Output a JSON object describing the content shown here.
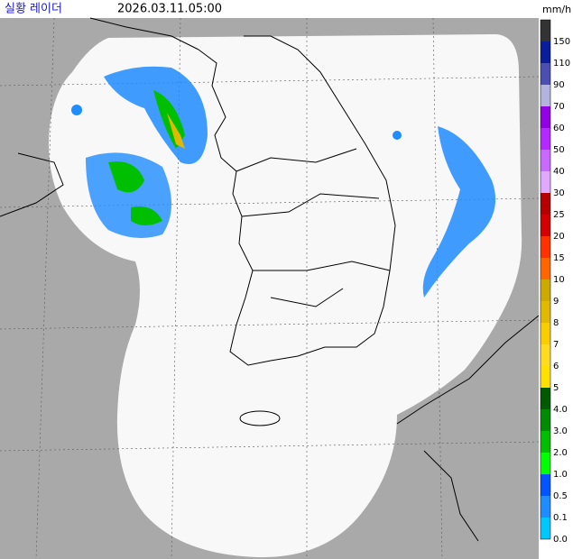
{
  "header": {
    "title": "실황 레이더",
    "time": "2026.03.11.05:00",
    "unit": "mm/h"
  },
  "legend": {
    "top_color": "#333333",
    "items": [
      {
        "label": "150",
        "color": "#000390"
      },
      {
        "label": "110",
        "color": "#0a1e9c"
      },
      {
        "label": "90",
        "color": "#4c4eb1"
      },
      {
        "label": "70",
        "color": "#b3b4de"
      },
      {
        "label": "60",
        "color": "#9300e4"
      },
      {
        "label": "50",
        "color": "#b329ff"
      },
      {
        "label": "40",
        "color": "#c969ff"
      },
      {
        "label": "30",
        "color": "#e0a9ff"
      },
      {
        "label": "25",
        "color": "#b40000"
      },
      {
        "label": "20",
        "color": "#d20000"
      },
      {
        "label": "15",
        "color": "#ff3200"
      },
      {
        "label": "10",
        "color": "#ff6600"
      },
      {
        "label": "9",
        "color": "#ccaa00"
      },
      {
        "label": "8",
        "color": "#e0b900"
      },
      {
        "label": "7",
        "color": "#f9cd00"
      },
      {
        "label": "6",
        "color": "#ffdc1f"
      },
      {
        "label": "5",
        "color": "#ffe100"
      },
      {
        "label": "4.0",
        "color": "#005a00"
      },
      {
        "label": "3.0",
        "color": "#008c00"
      },
      {
        "label": "2.0",
        "color": "#00be00"
      },
      {
        "label": "1.0",
        "color": "#00ff00"
      },
      {
        "label": "0.5",
        "color": "#0055ff"
      },
      {
        "label": "0.1",
        "color": "#1f8cff"
      },
      {
        "label": "0.0",
        "color": "#00c8ff"
      }
    ]
  }
}
